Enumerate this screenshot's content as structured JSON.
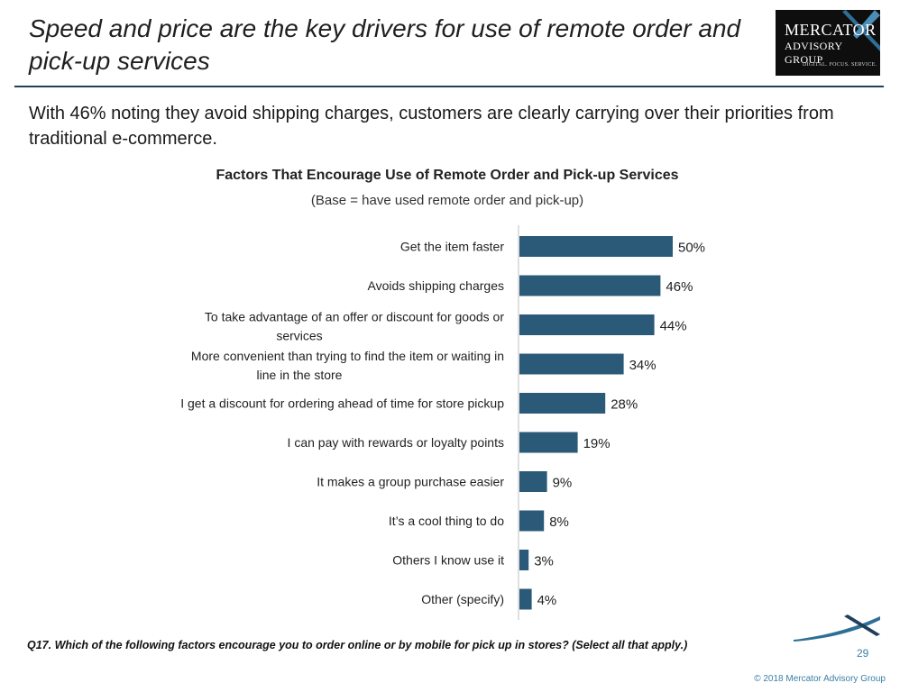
{
  "slide": {
    "title": "Speed and price are the key drivers for use of remote order and pick-up services",
    "subtitle": "With 46% noting they avoid shipping charges, customers are clearly carrying over their priorities from traditional e-commerce.",
    "footnote": "Q17. Which of the following factors encourage you to order online or by mobile for pick up in stores? (Select all that apply.)",
    "page_number": "29",
    "copyright": "© 2018 Mercator Advisory Group",
    "logo": {
      "line1": "MERCATOR",
      "line2": "ADVISORY GROUP",
      "tagline": "DIGITAL. FOCUS. SERVICE."
    }
  },
  "colors": {
    "bar": "#2b5a78",
    "rule": "#1f3f5b",
    "accent": "#3a7fa6"
  },
  "chart_data": {
    "type": "bar",
    "orientation": "horizontal",
    "title": "Factors That Encourage Use of Remote Order and Pick-up Services",
    "subtitle": "(Base = have used remote order and pick-up)",
    "categories": [
      "Get the item faster",
      "Avoids shipping charges",
      "To take advantage of an offer or discount for goods or services",
      "More convenient than trying to find the item or waiting in line in the store",
      "I get a discount for ordering ahead of time for store pickup",
      "I can pay with rewards or loyalty points",
      "It makes a group purchase easier",
      "It’s a cool thing to do",
      "Others I know use it",
      "Other (specify)"
    ],
    "values": [
      50,
      46,
      44,
      34,
      28,
      19,
      9,
      8,
      3,
      4
    ],
    "value_labels": [
      "50%",
      "46%",
      "44%",
      "34%",
      "28%",
      "19%",
      "9%",
      "8%",
      "3%",
      "4%"
    ],
    "unit": "%",
    "xlim": [
      0,
      100
    ],
    "grid": false,
    "legend": "none"
  }
}
